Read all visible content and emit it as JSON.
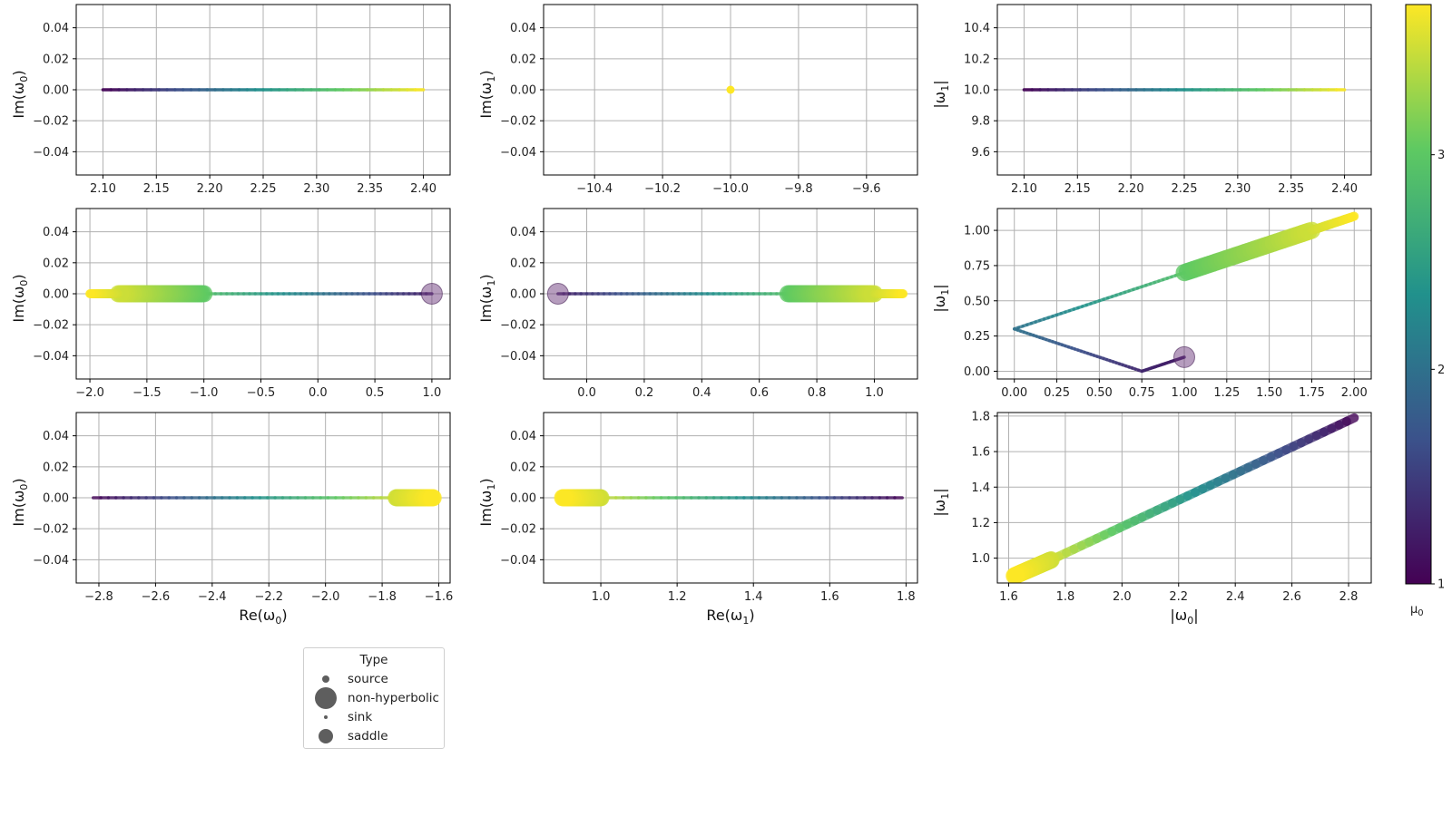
{
  "chart_data": [
    {
      "type": "line",
      "panel": "r1c1",
      "xlim": [
        2.075,
        2.425
      ],
      "ylim": [
        -0.055,
        0.055
      ],
      "xticks": [
        "2.10",
        "2.15",
        "2.20",
        "2.25",
        "2.30",
        "2.35",
        "2.40"
      ],
      "yticks": [
        "0.04",
        "0.02",
        "0.00",
        "−0.02",
        "−0.04"
      ],
      "xlabel": "",
      "ylabel": "Im(ω0)",
      "x": [
        2.1,
        2.4
      ],
      "y": [
        0,
        0
      ],
      "mu": [
        1,
        3.7
      ],
      "width": "thin"
    },
    {
      "type": "scatter",
      "panel": "r1c2",
      "xlim": [
        -10.55,
        -9.45
      ],
      "ylim": [
        -0.055,
        0.055
      ],
      "xticks": [
        "−10.4",
        "−10.2",
        "−10.0",
        "−9.8",
        "−9.6"
      ],
      "yticks": [
        "0.04",
        "0.02",
        "0.00",
        "−0.02",
        "−0.04"
      ],
      "xlabel": "",
      "ylabel": "Im(ω1)",
      "x": [
        -10.0
      ],
      "y": [
        0
      ],
      "mu": [
        3.7
      ]
    },
    {
      "type": "line",
      "panel": "r1c3",
      "xlim": [
        2.075,
        2.425
      ],
      "ylim": [
        9.45,
        10.55
      ],
      "xticks": [
        "2.10",
        "2.15",
        "2.20",
        "2.25",
        "2.30",
        "2.35",
        "2.40"
      ],
      "yticks": [
        "10.4",
        "10.2",
        "10.0",
        "9.8",
        "9.6"
      ],
      "xlabel": "",
      "ylabel": "|ω1|",
      "x": [
        2.1,
        2.4
      ],
      "y": [
        10,
        10
      ],
      "mu": [
        1,
        3.7
      ],
      "width": "thin"
    },
    {
      "type": "line",
      "panel": "r2c1",
      "xlim": [
        -2.12,
        1.16
      ],
      "ylim": [
        -0.055,
        0.055
      ],
      "xticks": [
        "−2.0",
        "−1.5",
        "−1.0",
        "−0.5",
        "0.0",
        "0.5",
        "1.0"
      ],
      "yticks": [
        "0.04",
        "0.02",
        "0.00",
        "−0.02",
        "−0.04"
      ],
      "xlabel": "",
      "ylabel": "Im(ω0)",
      "segments": [
        {
          "x": [
            1.0,
            -1.0
          ],
          "y": [
            0,
            0
          ],
          "mu": [
            1.2,
            2.9
          ],
          "width": "thin"
        },
        {
          "x": [
            -1.0,
            -1.75
          ],
          "y": [
            0,
            0
          ],
          "mu": [
            3.0,
            3.5
          ],
          "width": "thick"
        },
        {
          "x": [
            -1.75,
            -2.0
          ],
          "y": [
            0,
            0
          ],
          "mu": [
            3.5,
            3.7
          ],
          "width": "medium"
        }
      ],
      "nonhyperbolic": {
        "x": 1.0,
        "y": 0.0
      }
    },
    {
      "type": "line",
      "panel": "r2c2",
      "xlim": [
        -0.15,
        1.15
      ],
      "ylim": [
        -0.055,
        0.055
      ],
      "xticks": [
        "0.0",
        "0.2",
        "0.4",
        "0.6",
        "0.8",
        "1.0"
      ],
      "yticks": [
        "0.04",
        "0.02",
        "0.00",
        "−0.02",
        "−0.04"
      ],
      "xlabel": "",
      "ylabel": "Im(ω1)",
      "segments": [
        {
          "x": [
            -0.1,
            0.7
          ],
          "y": [
            0,
            0
          ],
          "mu": [
            1.2,
            2.9
          ],
          "width": "thin"
        },
        {
          "x": [
            0.7,
            1.0
          ],
          "y": [
            0,
            0
          ],
          "mu": [
            3.0,
            3.5
          ],
          "width": "thick"
        },
        {
          "x": [
            1.0,
            1.1
          ],
          "y": [
            0,
            0
          ],
          "mu": [
            3.5,
            3.7
          ],
          "width": "medium"
        }
      ],
      "nonhyperbolic": {
        "x": -0.1,
        "y": 0.0
      }
    },
    {
      "type": "line",
      "panel": "r2c3",
      "xlim": [
        -0.1,
        2.1
      ],
      "ylim": [
        -0.055,
        1.155
      ],
      "xticks": [
        "0.00",
        "0.25",
        "0.50",
        "0.75",
        "1.00",
        "1.25",
        "1.50",
        "1.75",
        "2.00"
      ],
      "yticks": [
        "1.00",
        "0.75",
        "0.50",
        "0.25",
        "0.00"
      ],
      "xlabel": "",
      "ylabel": "|ω1|",
      "segments": [
        {
          "x": [
            1.0,
            0.75
          ],
          "y": [
            0.1,
            0.0
          ],
          "mu": [
            1.2,
            1.3
          ],
          "width": "thin"
        },
        {
          "x": [
            0.75,
            0.0
          ],
          "y": [
            0.0,
            0.3
          ],
          "mu": [
            1.3,
            2.0
          ],
          "width": "thin"
        },
        {
          "x": [
            0.0,
            1.0
          ],
          "y": [
            0.3,
            0.7
          ],
          "mu": [
            2.0,
            2.9
          ],
          "width": "thin"
        },
        {
          "x": [
            1.0,
            1.75
          ],
          "y": [
            0.7,
            1.0
          ],
          "mu": [
            3.0,
            3.5
          ],
          "width": "thick"
        },
        {
          "x": [
            1.75,
            2.0
          ],
          "y": [
            1.0,
            1.1
          ],
          "mu": [
            3.5,
            3.7
          ],
          "width": "medium"
        }
      ],
      "nonhyperbolic": {
        "x": 1.0,
        "y": 0.1
      }
    },
    {
      "type": "line",
      "panel": "r3c1",
      "xlim": [
        -2.88,
        -1.56
      ],
      "ylim": [
        -0.055,
        0.055
      ],
      "xticks": [
        "−2.8",
        "−2.6",
        "−2.4",
        "−2.2",
        "−2.0",
        "−1.8",
        "−1.6"
      ],
      "yticks": [
        "0.04",
        "0.02",
        "0.00",
        "−0.02",
        "−0.04"
      ],
      "xlabel": "Re(ω0)",
      "ylabel": "Im(ω0)",
      "segments": [
        {
          "x": [
            -2.82,
            -1.75
          ],
          "y": [
            0,
            0
          ],
          "mu": [
            1,
            3.5
          ],
          "width": "thin"
        },
        {
          "x": [
            -1.75,
            -1.62
          ],
          "y": [
            0,
            0
          ],
          "mu": [
            3.5,
            3.7
          ],
          "width": "thick"
        }
      ]
    },
    {
      "type": "line",
      "panel": "r3c2",
      "xlim": [
        0.85,
        1.83
      ],
      "ylim": [
        -0.055,
        0.055
      ],
      "xticks": [
        "1.0",
        "1.2",
        "1.4",
        "1.6",
        "1.8"
      ],
      "yticks": [
        "0.04",
        "0.02",
        "0.00",
        "−0.02",
        "−0.04"
      ],
      "xlabel": "Re(ω1)",
      "ylabel": "Im(ω1)",
      "segments": [
        {
          "x": [
            1.79,
            1.0
          ],
          "y": [
            0,
            0
          ],
          "mu": [
            1,
            3.5
          ],
          "width": "thin"
        },
        {
          "x": [
            1.0,
            0.9
          ],
          "y": [
            0,
            0
          ],
          "mu": [
            3.5,
            3.7
          ],
          "width": "thick"
        }
      ]
    },
    {
      "type": "line",
      "panel": "r3c3",
      "xlim": [
        1.56,
        2.88
      ],
      "ylim": [
        0.86,
        1.82
      ],
      "xticks": [
        "1.6",
        "1.8",
        "2.0",
        "2.2",
        "2.4",
        "2.6",
        "2.8"
      ],
      "yticks": [
        "1.8",
        "1.6",
        "1.4",
        "1.2",
        "1.0"
      ],
      "xlabel": "|ω0|",
      "ylabel": "|ω1|",
      "segments": [
        {
          "x": [
            2.82,
            1.75
          ],
          "y": [
            1.79,
            0.99
          ],
          "mu": [
            1,
            3.5
          ],
          "width": "medium"
        },
        {
          "x": [
            1.75,
            1.62
          ],
          "y": [
            0.99,
            0.9
          ],
          "mu": [
            3.5,
            3.7
          ],
          "width": "thick"
        }
      ]
    }
  ],
  "colorbar": {
    "label": "μ0",
    "ticks": [
      "3",
      "2",
      "1"
    ],
    "range": [
      1,
      3.7
    ]
  },
  "legend": {
    "title": "Type",
    "items": [
      {
        "label": "source",
        "size": "small"
      },
      {
        "label": "non-hyperbolic",
        "size": "large"
      },
      {
        "label": "sink",
        "size": "tiny"
      },
      {
        "label": "saddle",
        "size": "medium"
      }
    ]
  }
}
